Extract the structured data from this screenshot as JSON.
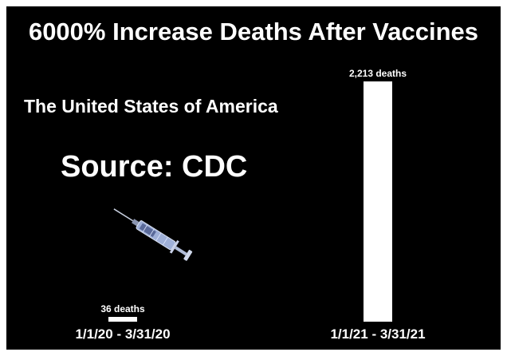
{
  "title": "6000% Increase Deaths After Vaccines",
  "subtitle": "The United States of America",
  "source": "Source: CDC",
  "icon": "syringe-icon",
  "colors": {
    "background": "#000000",
    "text": "#ffffff",
    "bar": "#ffffff"
  },
  "chart_data": {
    "type": "bar",
    "title": "6000% Increase Deaths After Vaccines",
    "categories": [
      "1/1/20 - 3/31/20",
      "1/1/21 - 3/31/21"
    ],
    "values": [
      36,
      2213
    ],
    "data_labels": [
      "36 deaths",
      "2,213 deaths"
    ],
    "ylim": [
      0,
      2213
    ],
    "xlabel": "",
    "ylabel": "",
    "grid": false,
    "legend": "none"
  }
}
